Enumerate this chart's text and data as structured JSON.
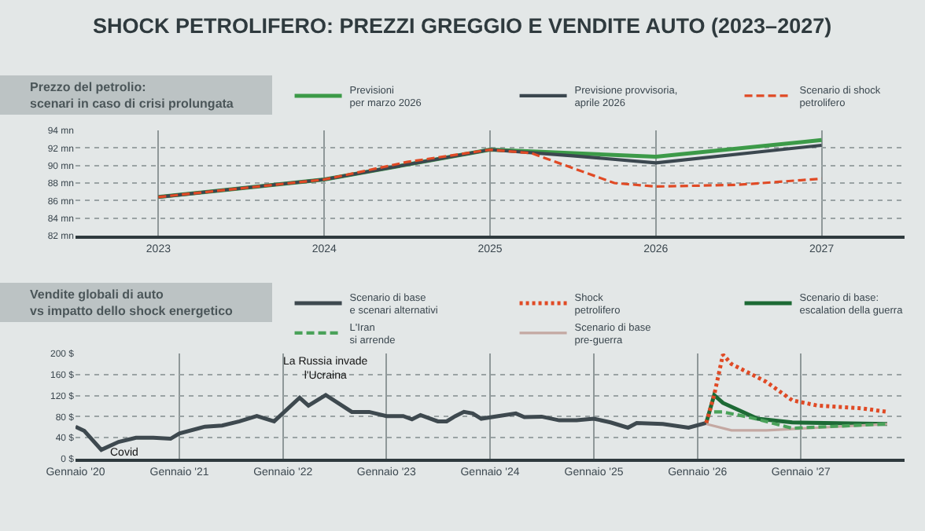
{
  "chart_data": [
    {
      "type": "line",
      "title": "SHOCK PETROLIFERO: PREZZI GREGGIO E VENDITE AUTO (2023–2027)",
      "subtitle": "Prezzo del petrolio:\nscenari in caso di crisi prolungata",
      "series": [
        {
          "name": "Previsioni\nper marzo 2026",
          "color": "#3c9a48",
          "line_style": "solid",
          "x": [
            2023,
            2024,
            2025,
            2026,
            2027
          ],
          "values": [
            86.4,
            88.4,
            91.8,
            91.0,
            92.9
          ]
        },
        {
          "name": "Previsione provvisoria,\naprile 2026",
          "color": "#3b474f",
          "line_style": "solid",
          "x": [
            2023,
            2024,
            2025,
            2025.5,
            2026,
            2027
          ],
          "values": [
            86.4,
            88.4,
            91.8,
            91.1,
            90.3,
            92.3
          ]
        },
        {
          "name": "Scenario di shock\npetrolifero",
          "color": "#e04a25",
          "line_style": "dashed",
          "x": [
            2023,
            2024,
            2024.5,
            2025,
            2025.25,
            2025.5,
            2025.75,
            2026,
            2026.5,
            2027
          ],
          "values": [
            86.4,
            88.4,
            90.4,
            91.8,
            91.4,
            89.7,
            88.0,
            87.6,
            87.8,
            88.5
          ]
        }
      ],
      "xlim": [
        2022.5,
        2027.5
      ],
      "xticks": [
        2023,
        2024,
        2025,
        2026,
        2027
      ],
      "ylim": [
        82,
        94
      ],
      "yticks": [
        {
          "value": 82,
          "label": "82 mn"
        },
        {
          "value": 84,
          "label": "84 mn"
        },
        {
          "value": 86,
          "label": "86 mn"
        },
        {
          "value": 88,
          "label": "88 mn"
        },
        {
          "value": 90,
          "label": "90 mn"
        },
        {
          "value": 92,
          "label": "92 mn"
        },
        {
          "value": 94,
          "label": "94 mn"
        }
      ],
      "grid": true,
      "legend": "top right"
    },
    {
      "type": "line",
      "title": "Vendite globali di auto\nvs impatto dello shock energetico",
      "series": [
        {
          "name": "Scenario di base\ne scenari alternativi",
          "color": "#3e494f",
          "line_style": "solid",
          "x": [
            "2020-01",
            "2020-02",
            "2020-04",
            "2020-06",
            "2020-08",
            "2020-10",
            "2020-12",
            "2021-01",
            "2021-04",
            "2021-06",
            "2021-08",
            "2021-10",
            "2021-12",
            "2022-03",
            "2022-04",
            "2022-06",
            "2022-09",
            "2022-11",
            "2023-01",
            "2023-03",
            "2023-04",
            "2023-05",
            "2023-07",
            "2023-08",
            "2023-09",
            "2023-10",
            "2023-11",
            "2023-12",
            "2024-04",
            "2024-05",
            "2024-07",
            "2024-09",
            "2024-11",
            "2025-01",
            "2025-03",
            "2025-05",
            "2025-06",
            "2025-09",
            "2025-12",
            "2026-02"
          ],
          "values": [
            61,
            53,
            17,
            32,
            40,
            40,
            38,
            48,
            61,
            63,
            71,
            81,
            71,
            116,
            101,
            121,
            89,
            89,
            81,
            81,
            75,
            83,
            71,
            71,
            81,
            89,
            86,
            76,
            86,
            79,
            80,
            73,
            73,
            76,
            69,
            59,
            68,
            66,
            59,
            68
          ]
        },
        {
          "name": "Shock\npetrolifero",
          "color": "#e04a25",
          "line_style": "dotted",
          "x": [
            "2026-02",
            "2026-03",
            "2026-04",
            "2026-05",
            "2026-09",
            "2026-12",
            "2027-03",
            "2027-08",
            "2027-11"
          ],
          "values": [
            68,
            121,
            198,
            180,
            146,
            111,
            101,
            96,
            89
          ]
        },
        {
          "name": "Scenario di base:\nescalation della guerra",
          "color": "#1d6a35",
          "line_style": "solid",
          "x": [
            "2026-02",
            "2026-03",
            "2026-04",
            "2026-08",
            "2026-12",
            "2027-11"
          ],
          "values": [
            68,
            121,
            106,
            76,
            69,
            66
          ]
        },
        {
          "name": "L'Iran\nsi arrende",
          "color": "#4aa25a",
          "line_style": "dashed",
          "x": [
            "2026-03",
            "2026-04",
            "2026-07",
            "2026-12",
            "2027-11"
          ],
          "values": [
            89,
            89,
            79,
            58,
            66
          ]
        },
        {
          "name": "Scenario di base\npre-guerra",
          "color": "#c4a8a2",
          "line_style": "solid",
          "x": [
            "2026-02",
            "2026-05",
            "2026-09",
            "2027-03",
            "2027-11"
          ],
          "values": [
            66,
            54,
            54,
            59,
            66
          ]
        }
      ],
      "xlim": [
        "2020-01",
        "2028-01"
      ],
      "xticks": [
        {
          "value": "2020-01",
          "label": "Gennaio '20"
        },
        {
          "value": "2021-01",
          "label": "Gennaio '21"
        },
        {
          "value": "2022-01",
          "label": "Gennaio '22"
        },
        {
          "value": "2023-01",
          "label": "Gennaio '23"
        },
        {
          "value": "2024-01",
          "label": "Gennaio '24"
        },
        {
          "value": "2025-01",
          "label": "Gennaio '25"
        },
        {
          "value": "2026-01",
          "label": "Gennaio '26"
        },
        {
          "value": "2027-01",
          "label": "Gennaio '27"
        }
      ],
      "ylim": [
        0,
        200
      ],
      "yticks": [
        {
          "value": 0,
          "label": "0 $"
        },
        {
          "value": 40,
          "label": "40 $"
        },
        {
          "value": 80,
          "label": "80 $"
        },
        {
          "value": 120,
          "label": "120 $"
        },
        {
          "value": 160,
          "label": "160 $"
        },
        {
          "value": 200,
          "label": "200 $"
        }
      ],
      "annotations": [
        {
          "text": "La Russia invade\nl'Ucraina",
          "x": "2022-06",
          "y": 121
        },
        {
          "text": "Covid",
          "x": "2020-04",
          "y": 17
        }
      ],
      "grid": true,
      "legend": "top right"
    }
  ]
}
